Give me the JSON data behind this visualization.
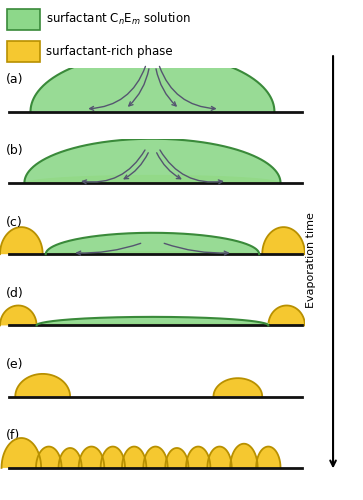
{
  "fig_width": 3.63,
  "fig_height": 5.0,
  "dpi": 100,
  "bg_color": "#ffffff",
  "green_fill": "#8dd88a",
  "green_edge": "#3a8a3a",
  "green_fill2": "#c8e87a",
  "yellow_fill": "#f5c830",
  "yellow_edge": "#b89000",
  "arrow_color": "#555570",
  "line_color": "#111111",
  "panel_labels": [
    "(a)",
    "(b)",
    "(c)",
    "(d)",
    "(e)",
    "(f)"
  ],
  "evap_label": "Evaporation time"
}
